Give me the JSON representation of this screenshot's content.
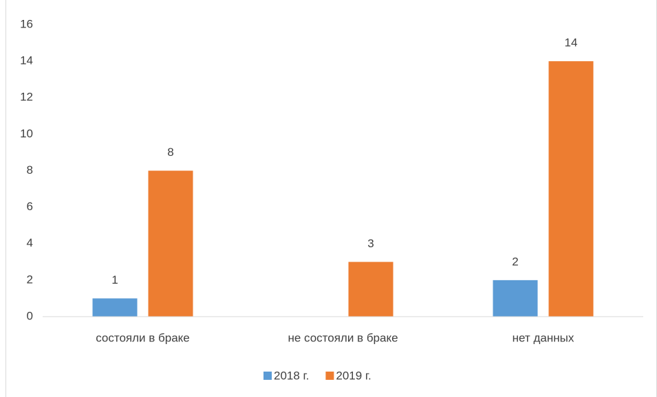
{
  "chart_data": {
    "type": "bar",
    "categories": [
      "состояли в браке",
      "не состояли в браке",
      "нет данных"
    ],
    "series": [
      {
        "name": "2018 г.",
        "color": "#5b9bd5",
        "values": [
          1,
          null,
          2
        ]
      },
      {
        "name": "2019 г.",
        "color": "#ed7d31",
        "values": [
          8,
          3,
          14
        ]
      }
    ],
    "ylim": [
      0,
      16
    ],
    "yticks": [
      0,
      2,
      4,
      6,
      8,
      10,
      12,
      14,
      16
    ],
    "grid": false,
    "legend": "bottom"
  }
}
